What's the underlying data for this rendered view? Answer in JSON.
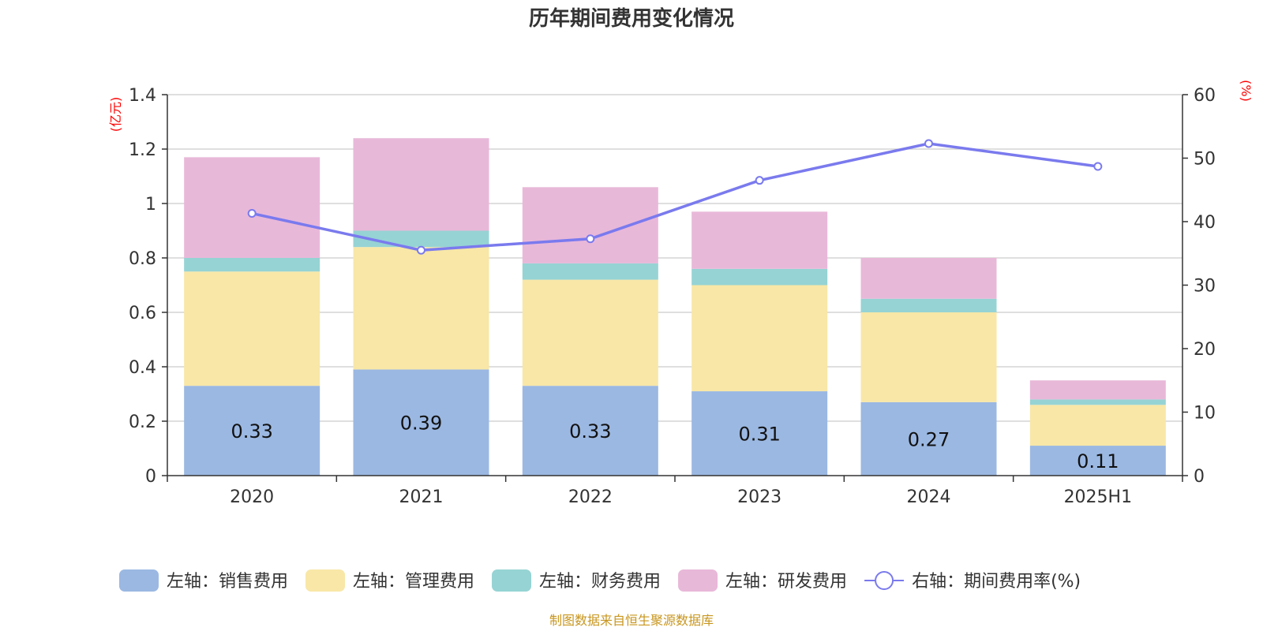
{
  "chart_data": {
    "type": "bar",
    "title": "历年期间费用变化情况",
    "categories": [
      "2020",
      "2021",
      "2022",
      "2023",
      "2024",
      "2025H1"
    ],
    "stacked": true,
    "series": [
      {
        "name": "左轴：销售费用",
        "axis": "left",
        "color": "#9bb8e2",
        "values": [
          0.33,
          0.39,
          0.33,
          0.31,
          0.27,
          0.11
        ],
        "show_labels": true
      },
      {
        "name": "左轴：管理费用",
        "axis": "left",
        "color": "#f8e7a7",
        "values": [
          0.42,
          0.45,
          0.39,
          0.39,
          0.33,
          0.15
        ]
      },
      {
        "name": "左轴：财务费用",
        "axis": "left",
        "color": "#96d3d4",
        "values": [
          0.05,
          0.06,
          0.06,
          0.06,
          0.05,
          0.02
        ]
      },
      {
        "name": "左轴：研发费用",
        "axis": "left",
        "color": "#e8b8d9",
        "values": [
          0.37,
          0.34,
          0.28,
          0.21,
          0.15,
          0.07
        ]
      }
    ],
    "line_series": {
      "name": "右轴：期间费用率(%)",
      "axis": "right",
      "type": "line",
      "color": "#7a7aee",
      "values": [
        41.3,
        35.5,
        37.3,
        46.5,
        52.3,
        48.7
      ]
    },
    "y_left": {
      "label": "(亿元)",
      "range": [
        0,
        1.4
      ],
      "ticks": [
        0,
        0.2,
        0.4,
        0.6,
        0.8,
        1,
        1.2,
        1.4
      ],
      "tick_labels": [
        "0",
        "0.2",
        "0.4",
        "0.6",
        "0.8",
        "1",
        "1.2",
        "1.4"
      ]
    },
    "y_right": {
      "label": "(%)",
      "range": [
        0,
        60
      ],
      "ticks": [
        0,
        10,
        20,
        30,
        40,
        50,
        60
      ],
      "tick_labels": [
        "0",
        "10",
        "20",
        "30",
        "40",
        "50",
        "60"
      ]
    },
    "grid": true,
    "legend_position": "bottom",
    "source": "制图数据来自恒生聚源数据库"
  }
}
